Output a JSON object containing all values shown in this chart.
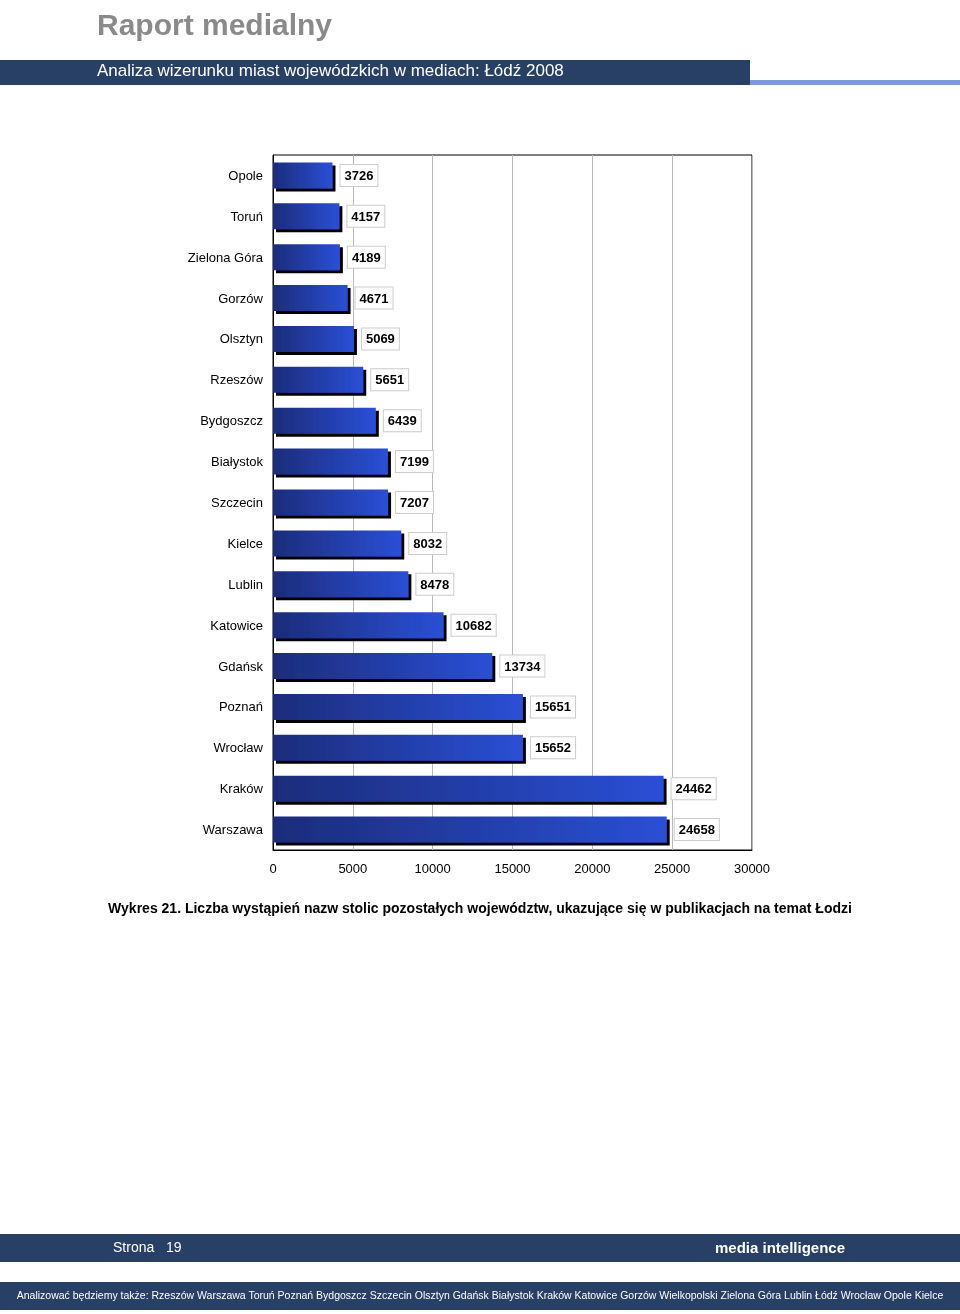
{
  "chart_data": {
    "type": "bar",
    "orientation": "horizontal",
    "title": "Raport medialny",
    "subtitle": "Analiza wizerunku miast wojewódzkich w mediach: Łódź 2008",
    "categories": [
      "Opole",
      "Toruń",
      "Zielona Góra",
      "Gorzów",
      "Olsztyn",
      "Rzeszów",
      "Bydgoszcz",
      "Białystok",
      "Szczecin",
      "Kielce",
      "Lublin",
      "Katowice",
      "Gdańsk",
      "Poznań",
      "Wrocław",
      "Kraków",
      "Warszawa"
    ],
    "values": [
      3726,
      4157,
      4189,
      4671,
      5069,
      5651,
      6439,
      7199,
      7207,
      8032,
      8478,
      10682,
      13734,
      15651,
      15652,
      24462,
      24658
    ],
    "color": "#2a4fd6",
    "xlim": [
      0,
      30000
    ],
    "xticks": [
      0,
      5000,
      10000,
      15000,
      20000,
      25000,
      30000
    ],
    "grid": "x",
    "data_labels": true,
    "annotations": [
      "Wykres 21. Liczba wystąpień nazw stolic pozostałych województw, ukazujące się w publikacjach na temat Łodzi",
      "Strona   19",
      "media intelligence",
      "Analizować będziemy także: Rzeszów Warszawa Toruń Poznań Bydgoszcz Szczecin Olsztyn Gdańsk Białystok Kraków Katowice Gorzów Wielkopolski Zielona Góra Lublin Łódź Wrocław Opole Kielce"
    ]
  }
}
